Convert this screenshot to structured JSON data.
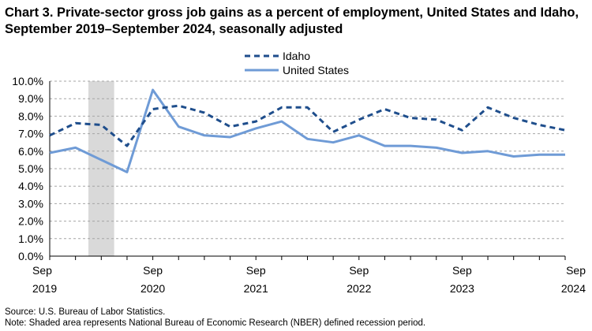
{
  "title": "Chart 3. Private-sector gross job gains as a percent of employment, United States and Idaho, September 2019–September 2024, seasonally adjusted",
  "source": "Source: U.S. Bureau of Labor Statistics.",
  "note": "Note: Shaded area represents National Bureau of Economic Research (NBER) defined recession period.",
  "chart_data": {
    "type": "line",
    "title": "Chart 3. Private-sector gross job gains as a percent of employment, United States and Idaho, September 2019–September 2024, seasonally adjusted",
    "xlabel": "",
    "ylabel": "",
    "ylim": [
      0,
      10
    ],
    "y_ticks": [
      "0.0%",
      "1.0%",
      "2.0%",
      "3.0%",
      "4.0%",
      "5.0%",
      "6.0%",
      "7.0%",
      "8.0%",
      "9.0%",
      "10.0%"
    ],
    "x_tick_labels": [
      {
        "month": "Sep",
        "year": "2019"
      },
      {
        "month": "Sep",
        "year": "2020"
      },
      {
        "month": "Sep",
        "year": "2021"
      },
      {
        "month": "Sep",
        "year": "2022"
      },
      {
        "month": "Sep",
        "year": "2023"
      },
      {
        "month": "Sep",
        "year": "2024"
      }
    ],
    "quarters": [
      "Sep 2019",
      "Dec 2019",
      "Mar 2020",
      "Jun 2020",
      "Sep 2020",
      "Dec 2020",
      "Mar 2021",
      "Jun 2021",
      "Sep 2021",
      "Dec 2021",
      "Mar 2022",
      "Jun 2022",
      "Sep 2022",
      "Dec 2022",
      "Mar 2023",
      "Jun 2023",
      "Sep 2023",
      "Dec 2023",
      "Mar 2024",
      "Jun 2024",
      "Sep 2024"
    ],
    "recession_shading": {
      "start_index": 1.5,
      "end_index": 2.5
    },
    "grid": true,
    "legend_position": "top-center",
    "series": [
      {
        "name": "Idaho",
        "style": "dashed",
        "color": "#1f4e8c",
        "values": [
          6.9,
          7.6,
          7.5,
          6.3,
          8.4,
          8.6,
          8.2,
          7.4,
          7.7,
          8.5,
          8.5,
          7.1,
          7.8,
          8.4,
          7.9,
          7.8,
          7.2,
          8.5,
          7.9,
          7.5,
          7.2
        ]
      },
      {
        "name": "United States",
        "style": "solid",
        "color": "#6f9bd6",
        "values": [
          5.9,
          6.2,
          5.5,
          4.8,
          9.5,
          7.4,
          6.9,
          6.8,
          7.3,
          7.7,
          6.7,
          6.5,
          6.9,
          6.3,
          6.3,
          6.2,
          5.9,
          6.0,
          5.7,
          5.8,
          5.8
        ]
      }
    ]
  }
}
